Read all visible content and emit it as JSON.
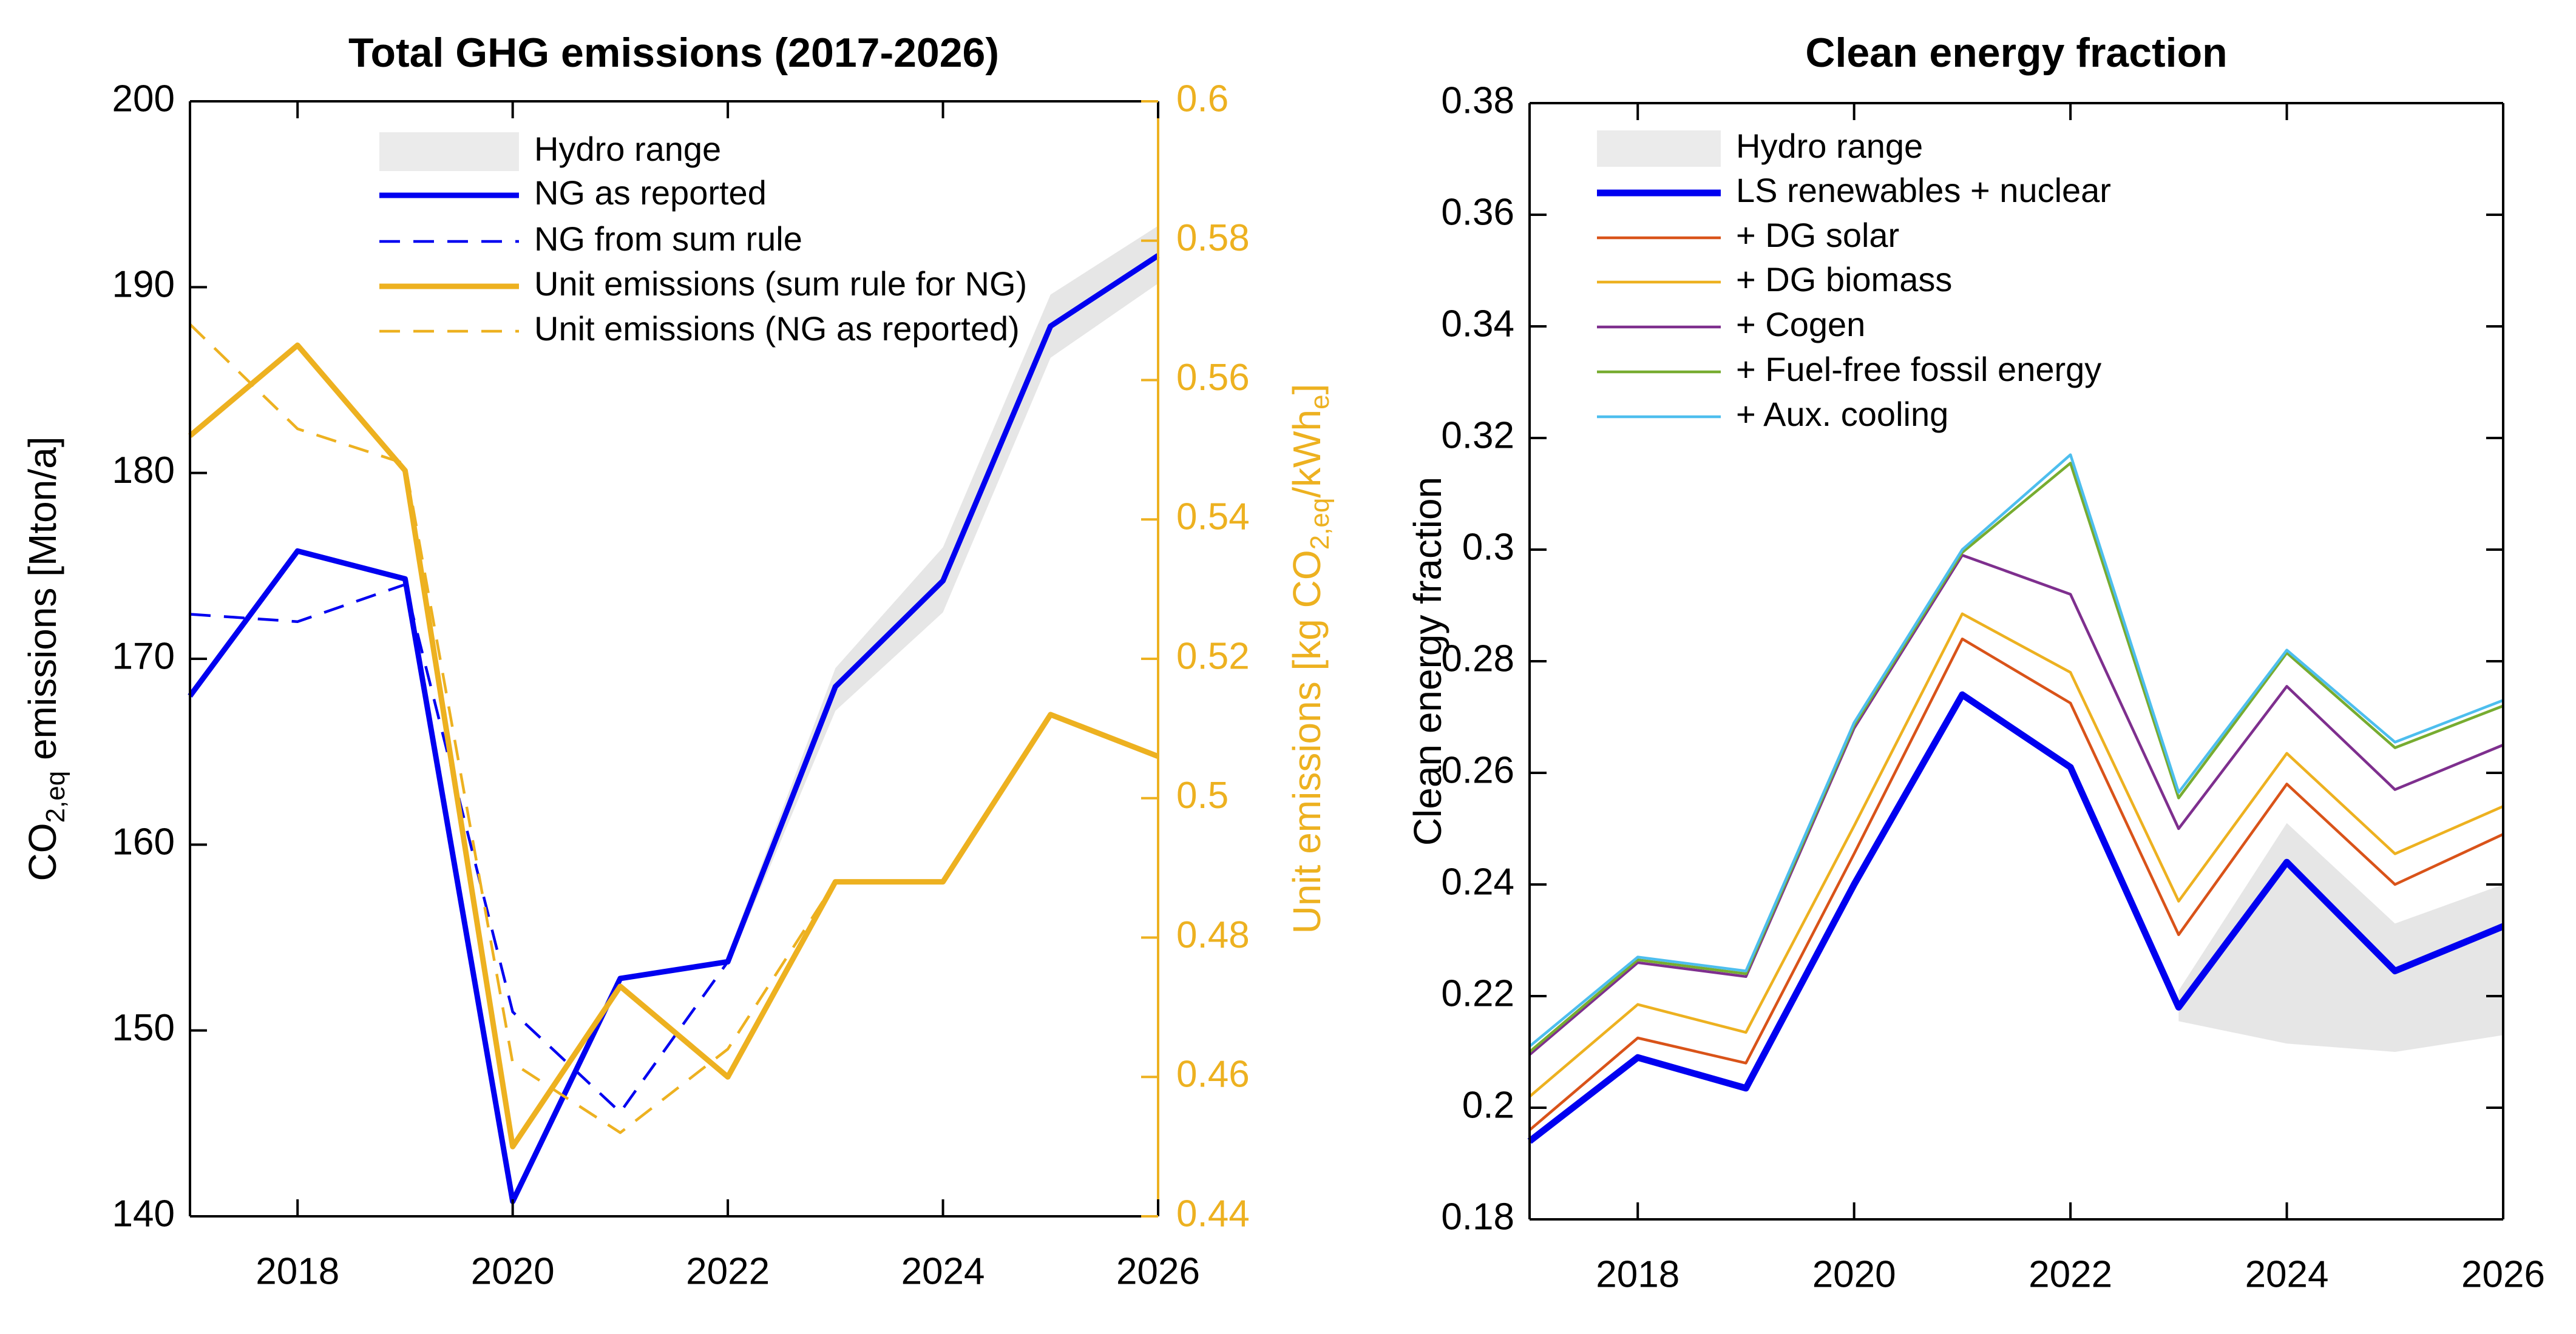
{
  "figure": {
    "background": "#ffffff",
    "left_title": "Total GHG emissions (2017-2026)",
    "right_title": "Clean energy fraction",
    "left_ylabel": {
      "pre": "CO",
      "sub": "2,eq",
      "post": " emissions [Mton/a]"
    },
    "left_right_ylabel": {
      "pre": "Unit emissions [kg CO",
      "sub": "2,eq",
      "mid": "/kWh",
      "sub2": "e",
      "post": "]"
    },
    "right_ylabel": "Clean energy fraction"
  },
  "colors": {
    "blue": "#0000f0",
    "gold": "#edb120",
    "red": "#d95319",
    "purple": "#7e2f8e",
    "green": "#77ac30",
    "cyan": "#4dbeee",
    "band_gray": "#e6e6e6",
    "legend_patch_gray": "#ebebeb",
    "axis_black": "#000000"
  },
  "chart_data": [
    {
      "type": "line",
      "title": "Total GHG emissions (2017-2026)",
      "x": [
        2017,
        2018,
        2019,
        2020,
        2021,
        2022,
        2023,
        2024,
        2025,
        2026
      ],
      "xlim": [
        2017,
        2026
      ],
      "xtick_values": [
        2018,
        2020,
        2022,
        2024,
        2026
      ],
      "xtick_labels": [
        "2018",
        "2020",
        "2022",
        "2024",
        "2026"
      ],
      "left_axis": {
        "label": "CO2,eq emissions [Mton/a]",
        "range": [
          140,
          200
        ],
        "tick_values": [
          140,
          150,
          160,
          170,
          180,
          190,
          200
        ],
        "tick_labels": [
          "140",
          "150",
          "160",
          "170",
          "180",
          "190",
          "200"
        ]
      },
      "right_axis": {
        "label": "Unit emissions [kg CO2,eq/kWhe]",
        "range": [
          0.44,
          0.6
        ],
        "tick_values": [
          0.44,
          0.46,
          0.48,
          0.5,
          0.52,
          0.54,
          0.56,
          0.58,
          0.6
        ],
        "tick_labels": [
          "0.44",
          "0.46",
          "0.48",
          "0.5",
          "0.52",
          "0.54",
          "0.56",
          "0.58",
          "0.6"
        ],
        "color": "#edb120"
      },
      "band": {
        "name": "Hydro range",
        "axis": "left",
        "color": "#e6e6e6",
        "x": [
          2022,
          2023,
          2024,
          2025,
          2026
        ],
        "lower": [
          153.4,
          167.2,
          172.5,
          186.2,
          190.2
        ],
        "upper": [
          154.1,
          169.5,
          176.0,
          189.6,
          193.3
        ]
      },
      "series": [
        {
          "name": "NG as reported",
          "axis": "left",
          "color": "#0000f0",
          "style": "solid",
          "width": 9,
          "values": [
            168.0,
            175.8,
            174.3,
            140.8,
            152.8,
            153.7,
            168.5,
            174.2,
            187.9,
            191.7
          ]
        },
        {
          "name": "NG from sum rule",
          "axis": "left",
          "color": "#0000f0",
          "style": "dashed",
          "width": 4.5,
          "values": [
            172.4,
            172.0,
            174.0,
            151.0,
            145.6,
            153.7,
            168.5,
            174.2,
            187.9,
            191.7
          ]
        },
        {
          "name": "Unit emissions (sum rule for NG)",
          "axis": "right",
          "color": "#edb120",
          "style": "solid",
          "width": 9,
          "values": [
            0.552,
            0.565,
            0.547,
            0.45,
            0.473,
            0.46,
            0.488,
            0.488,
            0.512,
            0.506
          ]
        },
        {
          "name": "Unit emissions (NG as reported)",
          "axis": "right",
          "color": "#edb120",
          "style": "dashed",
          "width": 4.5,
          "values": [
            0.568,
            0.553,
            0.548,
            0.462,
            0.452,
            0.464,
            0.488,
            0.488,
            0.512,
            0.506
          ]
        }
      ]
    },
    {
      "type": "line",
      "title": "Clean energy fraction",
      "x": [
        2017,
        2018,
        2019,
        2020,
        2021,
        2022,
        2023,
        2024,
        2025,
        2026
      ],
      "xlim": [
        2017,
        2026
      ],
      "xtick_values": [
        2018,
        2020,
        2022,
        2024,
        2026
      ],
      "xtick_labels": [
        "2018",
        "2020",
        "2022",
        "2024",
        "2026"
      ],
      "left_axis": {
        "label": "Clean energy fraction",
        "range": [
          0.18,
          0.38
        ],
        "tick_values": [
          0.18,
          0.2,
          0.22,
          0.24,
          0.26,
          0.28,
          0.3,
          0.32,
          0.34,
          0.36,
          0.38
        ],
        "tick_labels": [
          "0.18",
          "0.2",
          "0.22",
          "0.24",
          "0.26",
          "0.28",
          "0.3",
          "0.32",
          "0.34",
          "0.36",
          "0.38"
        ]
      },
      "band": {
        "name": "Hydro range",
        "axis": "left",
        "color": "#e6e6e6",
        "x": [
          2023,
          2024,
          2025,
          2026
        ],
        "lower": [
          0.2155,
          0.2115,
          0.21,
          0.213
        ],
        "upper": [
          0.221,
          0.251,
          0.233,
          0.24
        ]
      },
      "series": [
        {
          "name": "LS renewables + nuclear",
          "axis": "left",
          "color": "#0000f0",
          "style": "solid",
          "width": 11,
          "values": [
            0.194,
            0.209,
            0.2035,
            0.24,
            0.274,
            0.261,
            0.218,
            0.244,
            0.2245,
            0.2325
          ]
        },
        {
          "name": "+ DG solar",
          "axis": "left",
          "color": "#d95319",
          "style": "solid",
          "width": 4.5,
          "values": [
            0.196,
            0.2125,
            0.208,
            0.2455,
            0.284,
            0.2725,
            0.231,
            0.258,
            0.24,
            0.249
          ]
        },
        {
          "name": "+ DG biomass",
          "axis": "left",
          "color": "#edb120",
          "style": "solid",
          "width": 4.5,
          "values": [
            0.202,
            0.2185,
            0.2135,
            0.2505,
            0.2885,
            0.278,
            0.237,
            0.2635,
            0.2455,
            0.254
          ]
        },
        {
          "name": "+ Cogen",
          "axis": "left",
          "color": "#7e2f8e",
          "style": "solid",
          "width": 4.5,
          "values": [
            0.2095,
            0.226,
            0.2235,
            0.268,
            0.299,
            0.292,
            0.25,
            0.2755,
            0.257,
            0.265
          ]
        },
        {
          "name": "+ Fuel-free fossil energy",
          "axis": "left",
          "color": "#77ac30",
          "style": "solid",
          "width": 4.5,
          "values": [
            0.21,
            0.2265,
            0.224,
            0.2685,
            0.2995,
            0.3155,
            0.2555,
            0.2815,
            0.2645,
            0.272
          ]
        },
        {
          "name": "+ Aux. cooling",
          "axis": "left",
          "color": "#4dbeee",
          "style": "solid",
          "width": 4.5,
          "values": [
            0.211,
            0.227,
            0.2245,
            0.269,
            0.3,
            0.317,
            0.2565,
            0.282,
            0.2655,
            0.273
          ]
        }
      ]
    }
  ]
}
